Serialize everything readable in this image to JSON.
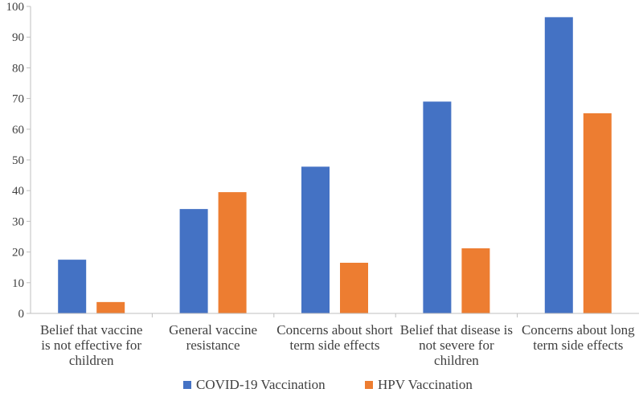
{
  "chart_data": {
    "type": "bar",
    "title": "",
    "xlabel": "",
    "ylabel": "",
    "ylim": [
      0,
      100
    ],
    "yticks": [
      0,
      10,
      20,
      30,
      40,
      50,
      60,
      70,
      80,
      90,
      100
    ],
    "grid": false,
    "legend_position": "bottom",
    "categories": [
      [
        "Belief that  vaccine",
        "is not effective for",
        "children"
      ],
      [
        "General vaccine",
        "resistance"
      ],
      [
        "Concerns about short",
        "term side effects"
      ],
      [
        "Belief that disease is",
        "not severe for",
        "children"
      ],
      [
        "Concerns about long",
        "term side effects"
      ]
    ],
    "series": [
      {
        "name": "COVID-19 Vaccination",
        "color": "#4472C4",
        "values": [
          17.5,
          34,
          47.8,
          69,
          96.5
        ]
      },
      {
        "name": "HPV Vaccination",
        "color": "#ED7D31",
        "values": [
          3.7,
          39.5,
          16.5,
          21.2,
          65.2
        ]
      }
    ]
  }
}
